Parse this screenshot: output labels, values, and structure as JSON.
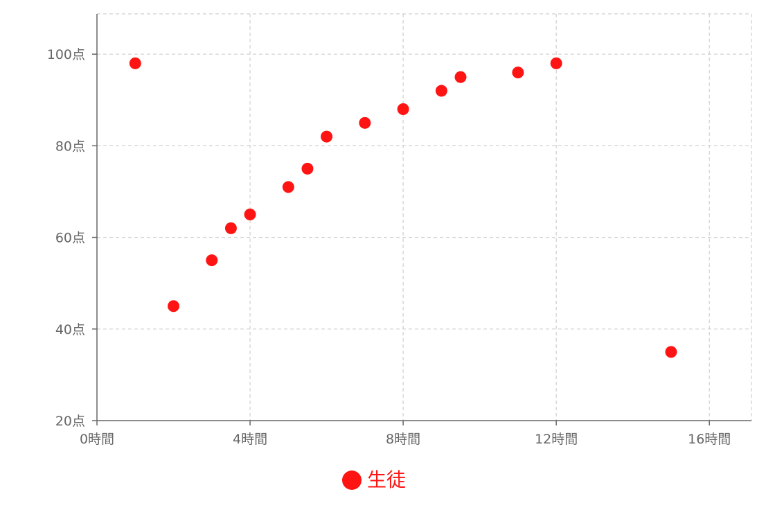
{
  "chart_data": {
    "type": "scatter",
    "x_ticks": [
      0,
      4,
      8,
      12,
      16
    ],
    "y_ticks": [
      20,
      40,
      60,
      80,
      100
    ],
    "x_tick_labels": [
      "0時間",
      "4時間",
      "8時間",
      "12時間",
      "16時間"
    ],
    "y_tick_labels": [
      "20点",
      "40点",
      "60点",
      "80点",
      "100点"
    ],
    "xlim": [
      0,
      17.1
    ],
    "ylim": [
      20,
      108.8
    ],
    "grid": true,
    "legend_position": "bottom",
    "series": [
      {
        "name": "生徒",
        "color": "#ff1414",
        "points": [
          {
            "x": 1,
            "y": 98
          },
          {
            "x": 2,
            "y": 45
          },
          {
            "x": 3,
            "y": 55
          },
          {
            "x": 3.5,
            "y": 62
          },
          {
            "x": 4,
            "y": 65
          },
          {
            "x": 5,
            "y": 71
          },
          {
            "x": 5.5,
            "y": 75
          },
          {
            "x": 6,
            "y": 82
          },
          {
            "x": 7,
            "y": 85
          },
          {
            "x": 8,
            "y": 88
          },
          {
            "x": 9,
            "y": 92
          },
          {
            "x": 9.5,
            "y": 95
          },
          {
            "x": 11,
            "y": 96
          },
          {
            "x": 12,
            "y": 98
          },
          {
            "x": 15,
            "y": 35
          }
        ]
      }
    ]
  }
}
